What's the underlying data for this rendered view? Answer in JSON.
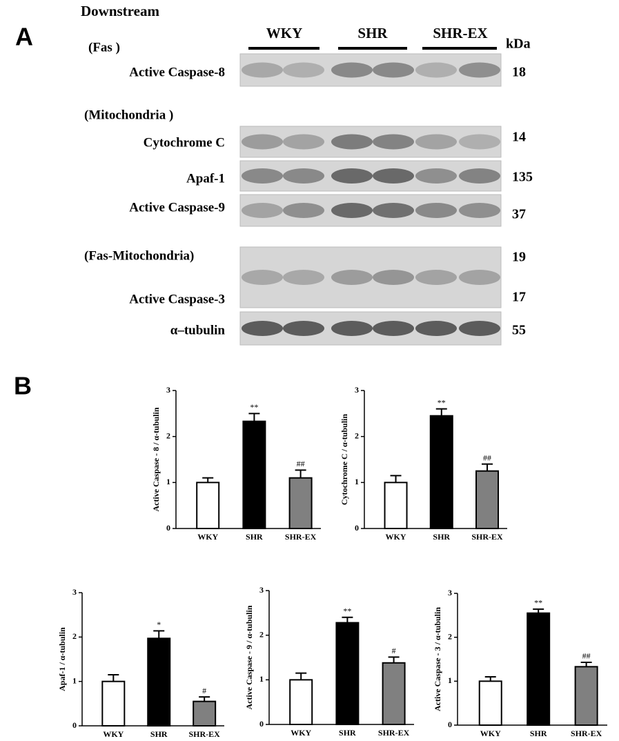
{
  "panel_a": {
    "label": "A",
    "heading": "Downstream",
    "groups": [
      "WKY",
      "SHR",
      "SHR-EX"
    ],
    "unit": "kDa",
    "sections": [
      "(Fas )",
      "(Mitochondria )",
      "(Fas-Mitochondria)"
    ],
    "proteins": [
      "Active Caspase-8",
      "Cytochrome C",
      "Apaf-1",
      "Active Caspase-9",
      "Active Caspase-3",
      "α–tubulin"
    ],
    "kda": [
      18,
      14,
      135,
      37,
      19,
      17,
      55
    ]
  },
  "panel_b": {
    "label": "B"
  },
  "chart_data": [
    {
      "type": "bar",
      "ylabel": "Active Caspase - 8 / α-tubulin",
      "categories": [
        "WKY",
        "SHR",
        "SHR-EX"
      ],
      "values": [
        1.0,
        2.33,
        1.1
      ],
      "errors": [
        0.1,
        0.17,
        0.17
      ],
      "markers": [
        null,
        "**",
        "##"
      ],
      "colors": [
        "#ffffff",
        "#000000",
        "#808080"
      ],
      "ylim": [
        0,
        3
      ],
      "yticks": [
        0,
        1,
        2,
        3
      ]
    },
    {
      "type": "bar",
      "ylabel": "Cytochrome C / α-tubulin",
      "categories": [
        "WKY",
        "SHR",
        "SHR-EX"
      ],
      "values": [
        1.0,
        2.45,
        1.25
      ],
      "errors": [
        0.15,
        0.15,
        0.15
      ],
      "markers": [
        null,
        "**",
        "##"
      ],
      "colors": [
        "#ffffff",
        "#000000",
        "#808080"
      ],
      "ylim": [
        0,
        3
      ],
      "yticks": [
        0,
        1,
        2,
        3
      ]
    },
    {
      "type": "bar",
      "ylabel": "Apaf-1 / α-tubulin",
      "categories": [
        "WKY",
        "SHR",
        "SHR-EX"
      ],
      "values": [
        1.0,
        1.97,
        0.55
      ],
      "errors": [
        0.15,
        0.17,
        0.1
      ],
      "markers": [
        null,
        "*",
        "#"
      ],
      "colors": [
        "#ffffff",
        "#000000",
        "#808080"
      ],
      "ylim": [
        0,
        3
      ],
      "yticks": [
        0,
        1,
        2,
        3
      ]
    },
    {
      "type": "bar",
      "ylabel": "Active Caspase - 9 / α-tubulin",
      "categories": [
        "WKY",
        "SHR",
        "SHR-EX"
      ],
      "values": [
        1.0,
        2.28,
        1.38
      ],
      "errors": [
        0.15,
        0.12,
        0.13
      ],
      "markers": [
        null,
        "**",
        "#"
      ],
      "colors": [
        "#ffffff",
        "#000000",
        "#808080"
      ],
      "ylim": [
        0,
        3
      ],
      "yticks": [
        0,
        1,
        2,
        3
      ]
    },
    {
      "type": "bar",
      "ylabel": "Active Caspase - 3 / α-tubulin",
      "categories": [
        "WKY",
        "SHR",
        "SHR-EX"
      ],
      "values": [
        1.0,
        2.55,
        1.33
      ],
      "errors": [
        0.1,
        0.09,
        0.1
      ],
      "markers": [
        null,
        "**",
        "##"
      ],
      "colors": [
        "#ffffff",
        "#000000",
        "#808080"
      ],
      "ylim": [
        0,
        3
      ],
      "yticks": [
        0,
        1,
        2,
        3
      ]
    }
  ]
}
